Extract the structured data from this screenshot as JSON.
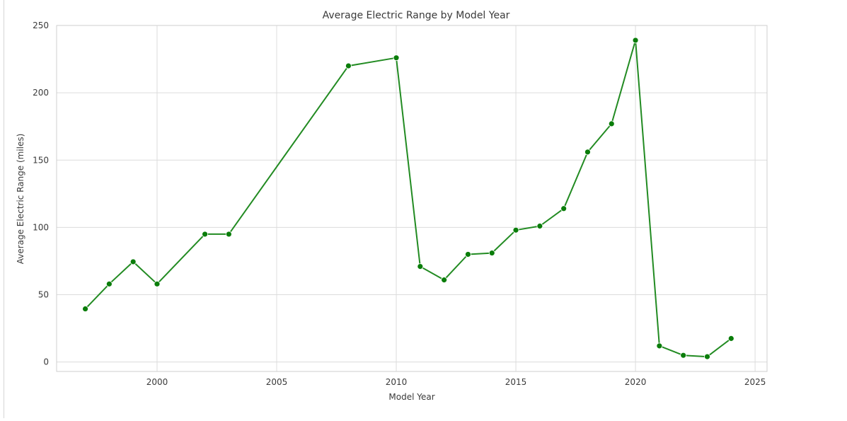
{
  "chart_data": {
    "type": "line",
    "title": "Average Electric Range by Model Year",
    "xlabel": "Model Year",
    "ylabel": "Average Electric Range (miles)",
    "xlim": [
      1995.8,
      2025.5
    ],
    "ylim": [
      -7,
      250
    ],
    "x_ticks": [
      2000,
      2005,
      2010,
      2015,
      2020,
      2025
    ],
    "y_ticks": [
      0,
      50,
      100,
      150,
      200,
      250
    ],
    "grid": true,
    "legend": "none",
    "colors": {
      "line": "#228b22",
      "marker": "#0a7d0a",
      "grid": "#dcdcdc",
      "axes": "#cfcfcf"
    },
    "series": [
      {
        "x": [
          1997,
          1998,
          1999,
          2000,
          2002,
          2003,
          2008,
          2010,
          2011,
          2012,
          2013,
          2014,
          2015,
          2016,
          2017,
          2018,
          2019,
          2020,
          2021,
          2022,
          2023,
          2024
        ],
        "values": [
          39.5,
          58,
          74.5,
          58,
          95,
          95,
          220,
          226,
          71,
          61,
          80,
          81,
          98,
          101,
          114,
          156,
          177,
          239,
          12,
          5,
          4,
          17.5
        ]
      }
    ]
  }
}
